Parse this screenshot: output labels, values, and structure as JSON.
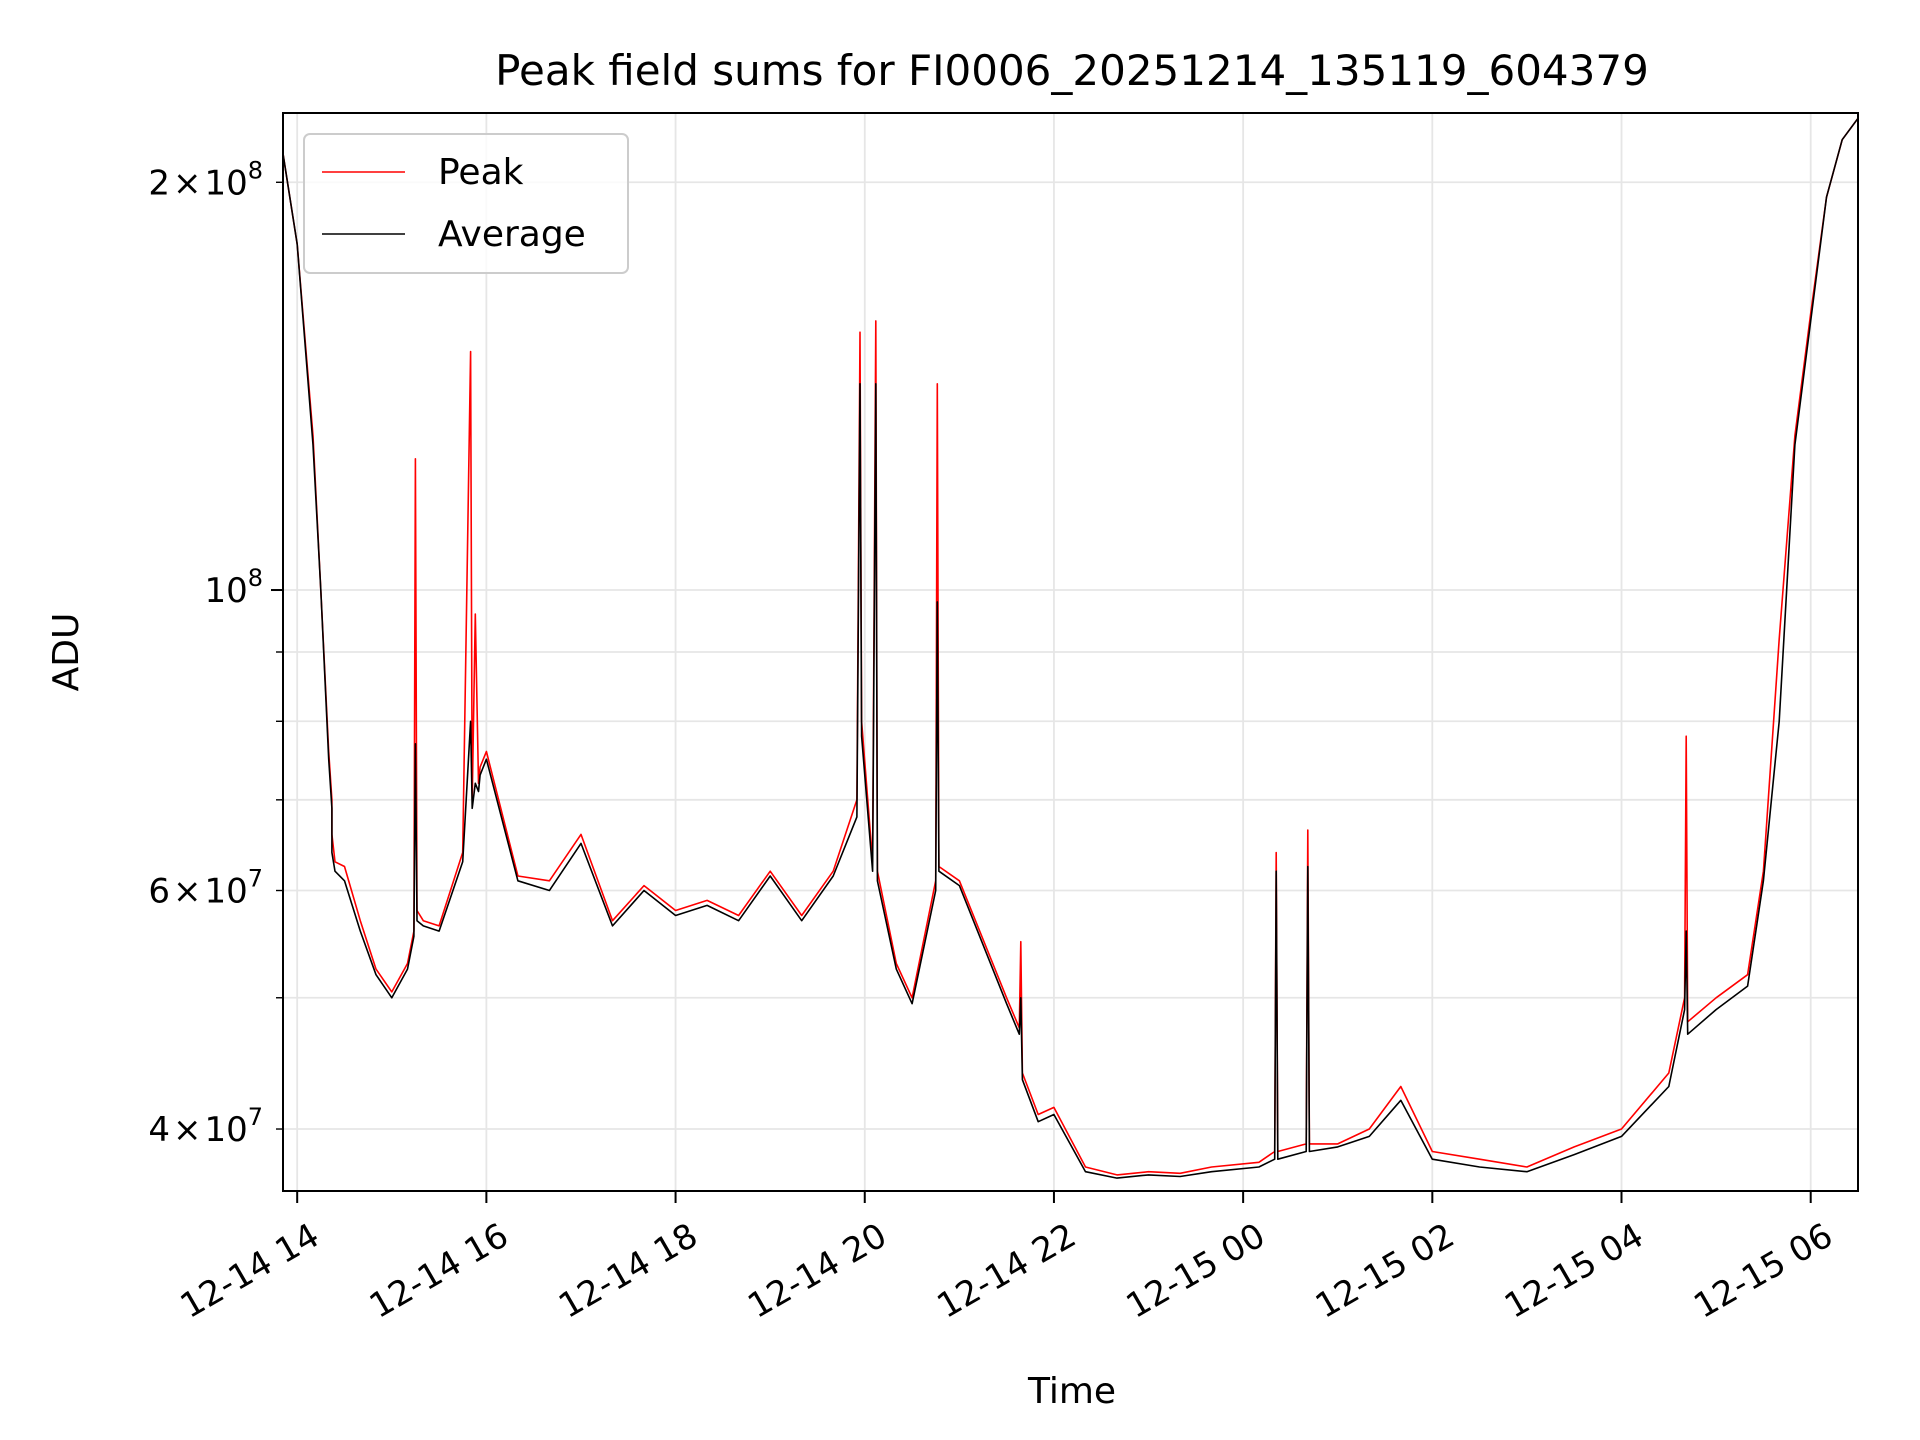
{
  "chart_data": {
    "type": "line",
    "title": "Peak field sums for FI0006_20251214_135119_604379",
    "xlabel": "Time",
    "ylabel": "ADU",
    "y_scale": "log",
    "grid": true,
    "legend_placement": "top-left",
    "xlim": [
      "2025-12-14T13:51",
      "2025-12-15T06:30"
    ],
    "ylim": [
      36000000,
      225000000
    ],
    "x_ticks": [
      "12-14 14",
      "12-14 16",
      "12-14 18",
      "12-14 20",
      "12-14 22",
      "12-15 00",
      "12-15 02",
      "12-15 04",
      "12-15 06"
    ],
    "x_tick_times": [
      "2025-12-14T14:00",
      "2025-12-14T16:00",
      "2025-12-14T18:00",
      "2025-12-14T20:00",
      "2025-12-14T22:00",
      "2025-12-15T00:00",
      "2025-12-15T02:00",
      "2025-12-15T04:00",
      "2025-12-15T06:00"
    ],
    "y_ticks_major": [
      {
        "value": 100000000,
        "label_base": "10",
        "label_exp": "8",
        "coef": ""
      }
    ],
    "y_ticks_minor": [
      {
        "value": 40000000,
        "coef": "4",
        "label_base": "10",
        "label_exp": "7"
      },
      {
        "value": 60000000,
        "coef": "6",
        "label_base": "10",
        "label_exp": "7"
      },
      {
        "value": 200000000,
        "coef": "2",
        "label_base": "10",
        "label_exp": "8"
      }
    ],
    "y_minor_unlabeled": [
      50000000,
      70000000,
      80000000,
      90000000
    ],
    "series": [
      {
        "name": "Peak",
        "color": "#ff0000",
        "x": [
          "2025-12-14T13:51",
          "2025-12-14T14:00",
          "2025-12-14T14:10",
          "2025-12-14T14:15",
          "2025-12-14T14:20",
          "2025-12-14T14:22",
          "2025-12-14T14:22",
          "2025-12-14T14:24",
          "2025-12-14T14:30",
          "2025-12-14T14:40",
          "2025-12-14T14:50",
          "2025-12-14T15:00",
          "2025-12-14T15:10",
          "2025-12-14T15:14",
          "2025-12-14T15:15",
          "2025-12-14T15:16",
          "2025-12-14T15:20",
          "2025-12-14T15:30",
          "2025-12-14T15:45",
          "2025-12-14T15:50",
          "2025-12-14T15:51",
          "2025-12-14T15:53",
          "2025-12-14T15:55",
          "2025-12-14T15:56",
          "2025-12-14T16:00",
          "2025-12-14T16:20",
          "2025-12-14T16:40",
          "2025-12-14T17:00",
          "2025-12-14T17:20",
          "2025-12-14T17:40",
          "2025-12-14T18:00",
          "2025-12-14T18:20",
          "2025-12-14T18:40",
          "2025-12-14T19:00",
          "2025-12-14T19:20",
          "2025-12-14T19:40",
          "2025-12-14T19:55",
          "2025-12-14T19:57",
          "2025-12-14T19:58",
          "2025-12-14T20:05",
          "2025-12-14T20:07",
          "2025-12-14T20:08",
          "2025-12-14T20:20",
          "2025-12-14T20:30",
          "2025-12-14T20:45",
          "2025-12-14T20:46",
          "2025-12-14T20:47",
          "2025-12-14T21:00",
          "2025-12-14T21:30",
          "2025-12-14T21:38",
          "2025-12-14T21:39",
          "2025-12-14T21:40",
          "2025-12-14T21:50",
          "2025-12-14T22:00",
          "2025-12-14T22:20",
          "2025-12-14T22:40",
          "2025-12-14T23:00",
          "2025-12-14T23:20",
          "2025-12-14T23:40",
          "2025-12-15T00:10",
          "2025-12-15T00:20",
          "2025-12-15T00:21",
          "2025-12-15T00:22",
          "2025-12-15T00:40",
          "2025-12-15T00:41",
          "2025-12-15T00:42",
          "2025-12-15T01:00",
          "2025-12-15T01:20",
          "2025-12-15T01:40",
          "2025-12-15T02:00",
          "2025-12-15T02:30",
          "2025-12-15T03:00",
          "2025-12-15T03:30",
          "2025-12-15T04:00",
          "2025-12-15T04:30",
          "2025-12-15T04:40",
          "2025-12-15T04:41",
          "2025-12-15T04:42",
          "2025-12-15T05:00",
          "2025-12-15T05:20",
          "2025-12-15T05:30",
          "2025-12-15T05:40",
          "2025-12-15T05:50",
          "2025-12-15T06:00",
          "2025-12-15T06:10",
          "2025-12-15T06:20",
          "2025-12-15T06:30"
        ],
        "values": [
          210000000,
          180000000,
          130000000,
          100000000,
          76000000,
          70000000,
          66000000,
          63000000,
          62500000,
          57000000,
          52500000,
          50500000,
          53000000,
          56000000,
          125000000,
          58000000,
          57000000,
          56500000,
          64000000,
          150000000,
          70000000,
          96000000,
          72000000,
          74000000,
          76000000,
          61500000,
          61000000,
          66000000,
          57000000,
          60500000,
          58000000,
          59000000,
          57500000,
          62000000,
          57500000,
          62000000,
          70000000,
          155000000,
          80000000,
          63000000,
          158000000,
          62000000,
          53000000,
          50000000,
          61000000,
          142000000,
          62500000,
          61000000,
          50000000,
          47500000,
          55000000,
          44000000,
          41000000,
          41500000,
          37500000,
          37000000,
          37200000,
          37100000,
          37500000,
          37800000,
          38500000,
          64000000,
          38500000,
          39000000,
          66500000,
          39000000,
          39000000,
          40000000,
          43000000,
          38500000,
          38000000,
          37500000,
          38800000,
          40000000,
          44000000,
          50000000,
          78000000,
          48000000,
          50000000,
          52000000,
          62000000,
          92000000,
          130000000,
          160000000,
          195000000,
          215000000,
          223000000
        ]
      },
      {
        "name": "Average",
        "color": "#000000",
        "x": [
          "2025-12-14T13:51",
          "2025-12-14T14:00",
          "2025-12-14T14:10",
          "2025-12-14T14:15",
          "2025-12-14T14:20",
          "2025-12-14T14:22",
          "2025-12-14T14:22",
          "2025-12-14T14:24",
          "2025-12-14T14:30",
          "2025-12-14T14:40",
          "2025-12-14T14:50",
          "2025-12-14T15:00",
          "2025-12-14T15:10",
          "2025-12-14T15:14",
          "2025-12-14T15:15",
          "2025-12-14T15:16",
          "2025-12-14T15:20",
          "2025-12-14T15:30",
          "2025-12-14T15:45",
          "2025-12-14T15:50",
          "2025-12-14T15:51",
          "2025-12-14T15:53",
          "2025-12-14T15:55",
          "2025-12-14T15:56",
          "2025-12-14T16:00",
          "2025-12-14T16:20",
          "2025-12-14T16:40",
          "2025-12-14T17:00",
          "2025-12-14T17:20",
          "2025-12-14T17:40",
          "2025-12-14T18:00",
          "2025-12-14T18:20",
          "2025-12-14T18:40",
          "2025-12-14T19:00",
          "2025-12-14T19:20",
          "2025-12-14T19:40",
          "2025-12-14T19:55",
          "2025-12-14T19:57",
          "2025-12-14T19:58",
          "2025-12-14T20:05",
          "2025-12-14T20:07",
          "2025-12-14T20:08",
          "2025-12-14T20:20",
          "2025-12-14T20:30",
          "2025-12-14T20:45",
          "2025-12-14T20:46",
          "2025-12-14T20:47",
          "2025-12-14T21:00",
          "2025-12-14T21:30",
          "2025-12-14T21:38",
          "2025-12-14T21:39",
          "2025-12-14T21:40",
          "2025-12-14T21:50",
          "2025-12-14T22:00",
          "2025-12-14T22:20",
          "2025-12-14T22:40",
          "2025-12-14T23:00",
          "2025-12-14T23:20",
          "2025-12-14T23:40",
          "2025-12-15T00:10",
          "2025-12-15T00:20",
          "2025-12-15T00:21",
          "2025-12-15T00:22",
          "2025-12-15T00:40",
          "2025-12-15T00:41",
          "2025-12-15T00:42",
          "2025-12-15T01:00",
          "2025-12-15T01:20",
          "2025-12-15T01:40",
          "2025-12-15T02:00",
          "2025-12-15T02:30",
          "2025-12-15T03:00",
          "2025-12-15T03:30",
          "2025-12-15T04:00",
          "2025-12-15T04:30",
          "2025-12-15T04:40",
          "2025-12-15T04:41",
          "2025-12-15T04:42",
          "2025-12-15T05:00",
          "2025-12-15T05:20",
          "2025-12-15T05:30",
          "2025-12-15T05:40",
          "2025-12-15T05:50",
          "2025-12-15T06:00",
          "2025-12-15T06:10",
          "2025-12-15T06:20",
          "2025-12-15T06:30"
        ],
        "values": [
          210000000,
          180000000,
          128000000,
          100000000,
          75000000,
          69000000,
          64000000,
          62000000,
          61000000,
          56000000,
          52000000,
          50000000,
          52500000,
          55500000,
          77000000,
          57000000,
          56500000,
          56000000,
          63000000,
          80000000,
          69000000,
          72000000,
          71000000,
          73000000,
          75000000,
          61000000,
          60000000,
          65000000,
          56500000,
          60000000,
          57500000,
          58500000,
          57000000,
          61500000,
          57000000,
          61500000,
          68000000,
          142000000,
          78000000,
          62000000,
          142000000,
          61000000,
          52500000,
          49500000,
          60000000,
          98000000,
          62000000,
          60500000,
          49500000,
          47000000,
          50000000,
          43500000,
          40500000,
          41000000,
          37200000,
          36800000,
          37000000,
          36900000,
          37200000,
          37500000,
          38000000,
          62000000,
          38000000,
          38500000,
          62500000,
          38500000,
          38800000,
          39500000,
          42000000,
          38000000,
          37500000,
          37200000,
          38300000,
          39500000,
          43000000,
          49000000,
          56000000,
          47000000,
          49000000,
          51000000,
          61000000,
          80000000,
          128000000,
          158000000,
          195000000,
          215000000,
          223000000
        ]
      }
    ]
  }
}
